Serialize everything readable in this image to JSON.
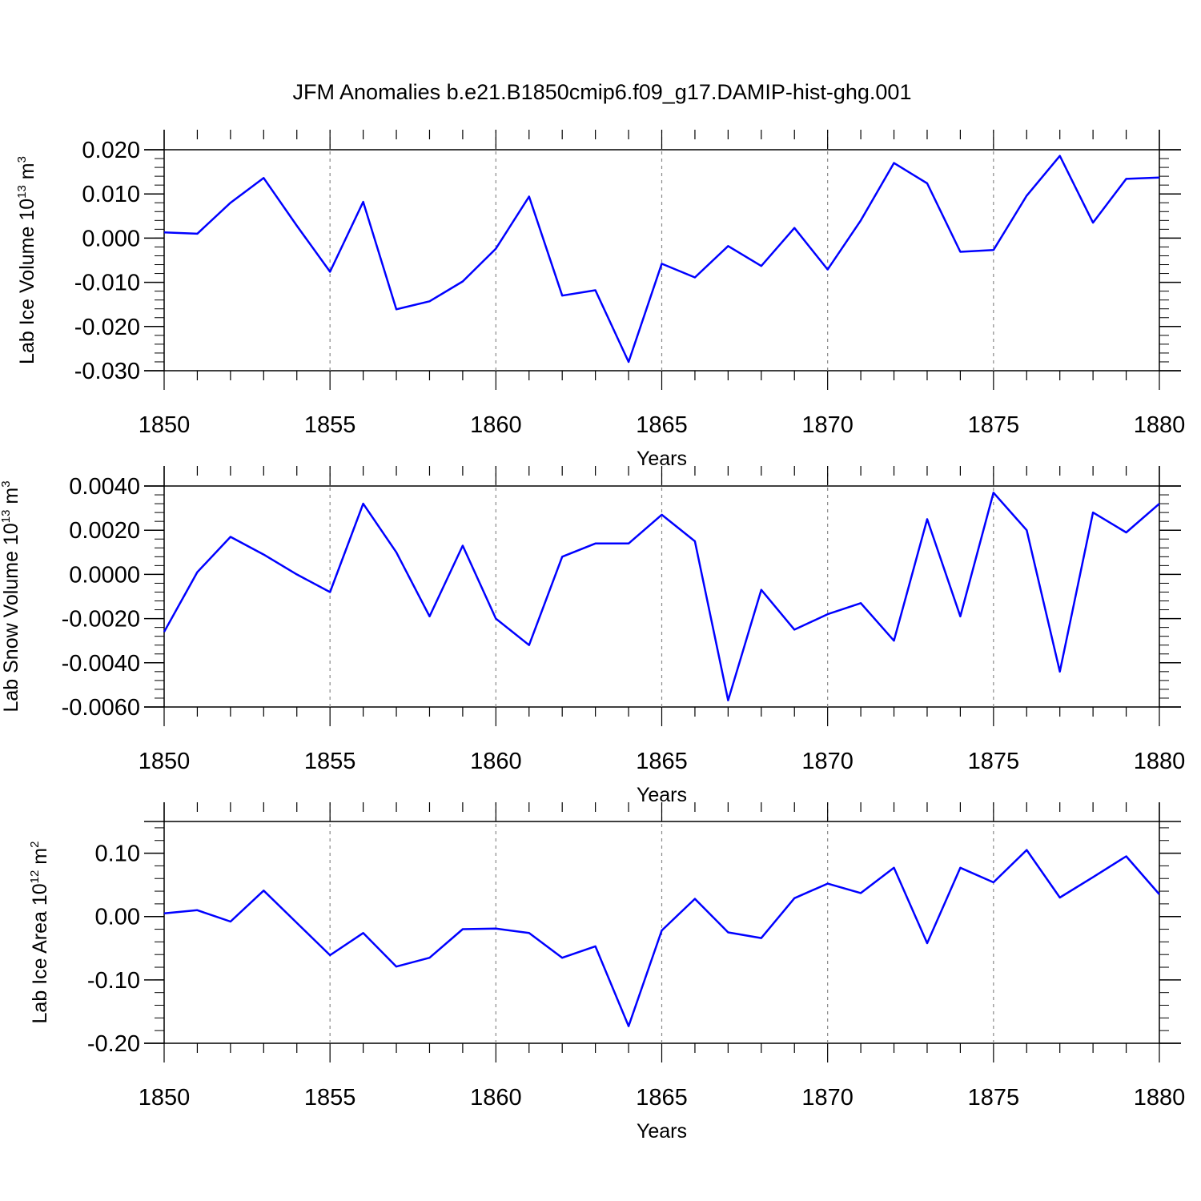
{
  "title": "JFM Anomalies b.e21.B1850cmip6.f09_g17.DAMIP-hist-ghg.001",
  "colors": {
    "line": "#0000ff",
    "axis": "#000000",
    "gridline": "#888888",
    "background": "#ffffff"
  },
  "chart_data": [
    {
      "type": "line",
      "ylabel_main": "Lab Ice Volume 10",
      "ylabel_exp": "13",
      "ylabel_unit": "m",
      "ylabel_unit_exp": "3",
      "xlabel": "Years",
      "xlim": [
        1850,
        1880
      ],
      "ylim": [
        -0.03,
        0.02
      ],
      "yticks": [
        -0.03,
        -0.02,
        -0.01,
        0.0,
        0.01,
        0.02
      ],
      "yticklabels": [
        "-0.030",
        "-0.020",
        "-0.010",
        "0.000",
        "0.010",
        "0.020"
      ],
      "xticks": [
        1850,
        1855,
        1860,
        1865,
        1870,
        1875,
        1880
      ],
      "xticklabels": [
        "1850",
        "1855",
        "1860",
        "1865",
        "1870",
        "1875",
        "1880"
      ],
      "x": [
        1850,
        1851,
        1852,
        1853,
        1854,
        1855,
        1856,
        1857,
        1858,
        1859,
        1860,
        1861,
        1862,
        1863,
        1864,
        1865,
        1866,
        1867,
        1868,
        1869,
        1870,
        1871,
        1872,
        1873,
        1874,
        1875,
        1876,
        1877,
        1878,
        1879,
        1880
      ],
      "series": [
        {
          "name": "Lab Ice Volume",
          "values": [
            0.0013,
            0.001,
            0.008,
            0.0136,
            0.0028,
            -0.0076,
            0.0082,
            -0.0161,
            -0.0143,
            -0.0098,
            -0.0024,
            0.0094,
            -0.013,
            -0.0118,
            -0.028,
            -0.0058,
            -0.0089,
            -0.0018,
            -0.0063,
            0.0023,
            -0.0071,
            0.004,
            0.017,
            0.0124,
            -0.0031,
            -0.0027,
            0.0096,
            0.0186,
            0.0035,
            0.0134,
            0.0137
          ]
        }
      ]
    },
    {
      "type": "line",
      "ylabel_main": "Lab Snow Volume 10",
      "ylabel_exp": "13",
      "ylabel_unit": "m",
      "ylabel_unit_exp": "3",
      "xlabel": "Years",
      "xlim": [
        1850,
        1880
      ],
      "ylim": [
        -0.006,
        0.004
      ],
      "yticks": [
        -0.006,
        -0.004,
        -0.002,
        0.0,
        0.002,
        0.004
      ],
      "yticklabels": [
        "-0.0060",
        "-0.0040",
        "-0.0020",
        "0.0000",
        "0.0020",
        "0.0040"
      ],
      "xticks": [
        1850,
        1855,
        1860,
        1865,
        1870,
        1875,
        1880
      ],
      "xticklabels": [
        "1850",
        "1855",
        "1860",
        "1865",
        "1870",
        "1875",
        "1880"
      ],
      "x": [
        1850,
        1851,
        1852,
        1853,
        1854,
        1855,
        1856,
        1857,
        1858,
        1859,
        1860,
        1861,
        1862,
        1863,
        1864,
        1865,
        1866,
        1867,
        1868,
        1869,
        1870,
        1871,
        1872,
        1873,
        1874,
        1875,
        1876,
        1877,
        1878,
        1879,
        1880
      ],
      "series": [
        {
          "name": "Lab Snow Volume",
          "values": [
            -0.0026,
            0.0001,
            0.0017,
            0.0009,
            0.0,
            -0.0008,
            0.0032,
            0.001,
            -0.0019,
            0.0013,
            -0.002,
            -0.0032,
            0.0008,
            0.0014,
            0.0014,
            0.0027,
            0.0015,
            -0.0057,
            -0.0007,
            -0.0025,
            -0.0018,
            -0.0013,
            -0.003,
            0.0025,
            -0.0019,
            0.0037,
            0.002,
            -0.0044,
            0.0028,
            0.0019,
            0.0032
          ]
        }
      ]
    },
    {
      "type": "line",
      "ylabel_main": "Lab Ice Area 10",
      "ylabel_exp": "12",
      "ylabel_unit": "m",
      "ylabel_unit_exp": "2",
      "xlabel": "Years",
      "xlim": [
        1850,
        1880
      ],
      "ylim": [
        -0.2,
        0.15
      ],
      "yticks": [
        -0.2,
        -0.1,
        0.0,
        0.1
      ],
      "yticklabels": [
        "-0.20",
        "-0.10",
        "0.00",
        "0.10"
      ],
      "xticks": [
        1850,
        1855,
        1860,
        1865,
        1870,
        1875,
        1880
      ],
      "xticklabels": [
        "1850",
        "1855",
        "1860",
        "1865",
        "1870",
        "1875",
        "1880"
      ],
      "x": [
        1850,
        1851,
        1852,
        1853,
        1854,
        1855,
        1856,
        1857,
        1858,
        1859,
        1860,
        1861,
        1862,
        1863,
        1864,
        1865,
        1866,
        1867,
        1868,
        1869,
        1870,
        1871,
        1872,
        1873,
        1874,
        1875,
        1876,
        1877,
        1878,
        1879,
        1880
      ],
      "series": [
        {
          "name": "Lab Ice Area",
          "values": [
            0.005,
            0.01,
            -0.008,
            0.041,
            -0.01,
            -0.061,
            -0.026,
            -0.079,
            -0.065,
            -0.02,
            -0.019,
            -0.026,
            -0.065,
            -0.047,
            -0.173,
            -0.022,
            0.028,
            -0.025,
            -0.034,
            0.029,
            0.052,
            0.037,
            0.077,
            -0.042,
            0.077,
            0.054,
            0.105,
            0.03,
            0.062,
            0.095,
            0.035
          ]
        }
      ]
    }
  ]
}
